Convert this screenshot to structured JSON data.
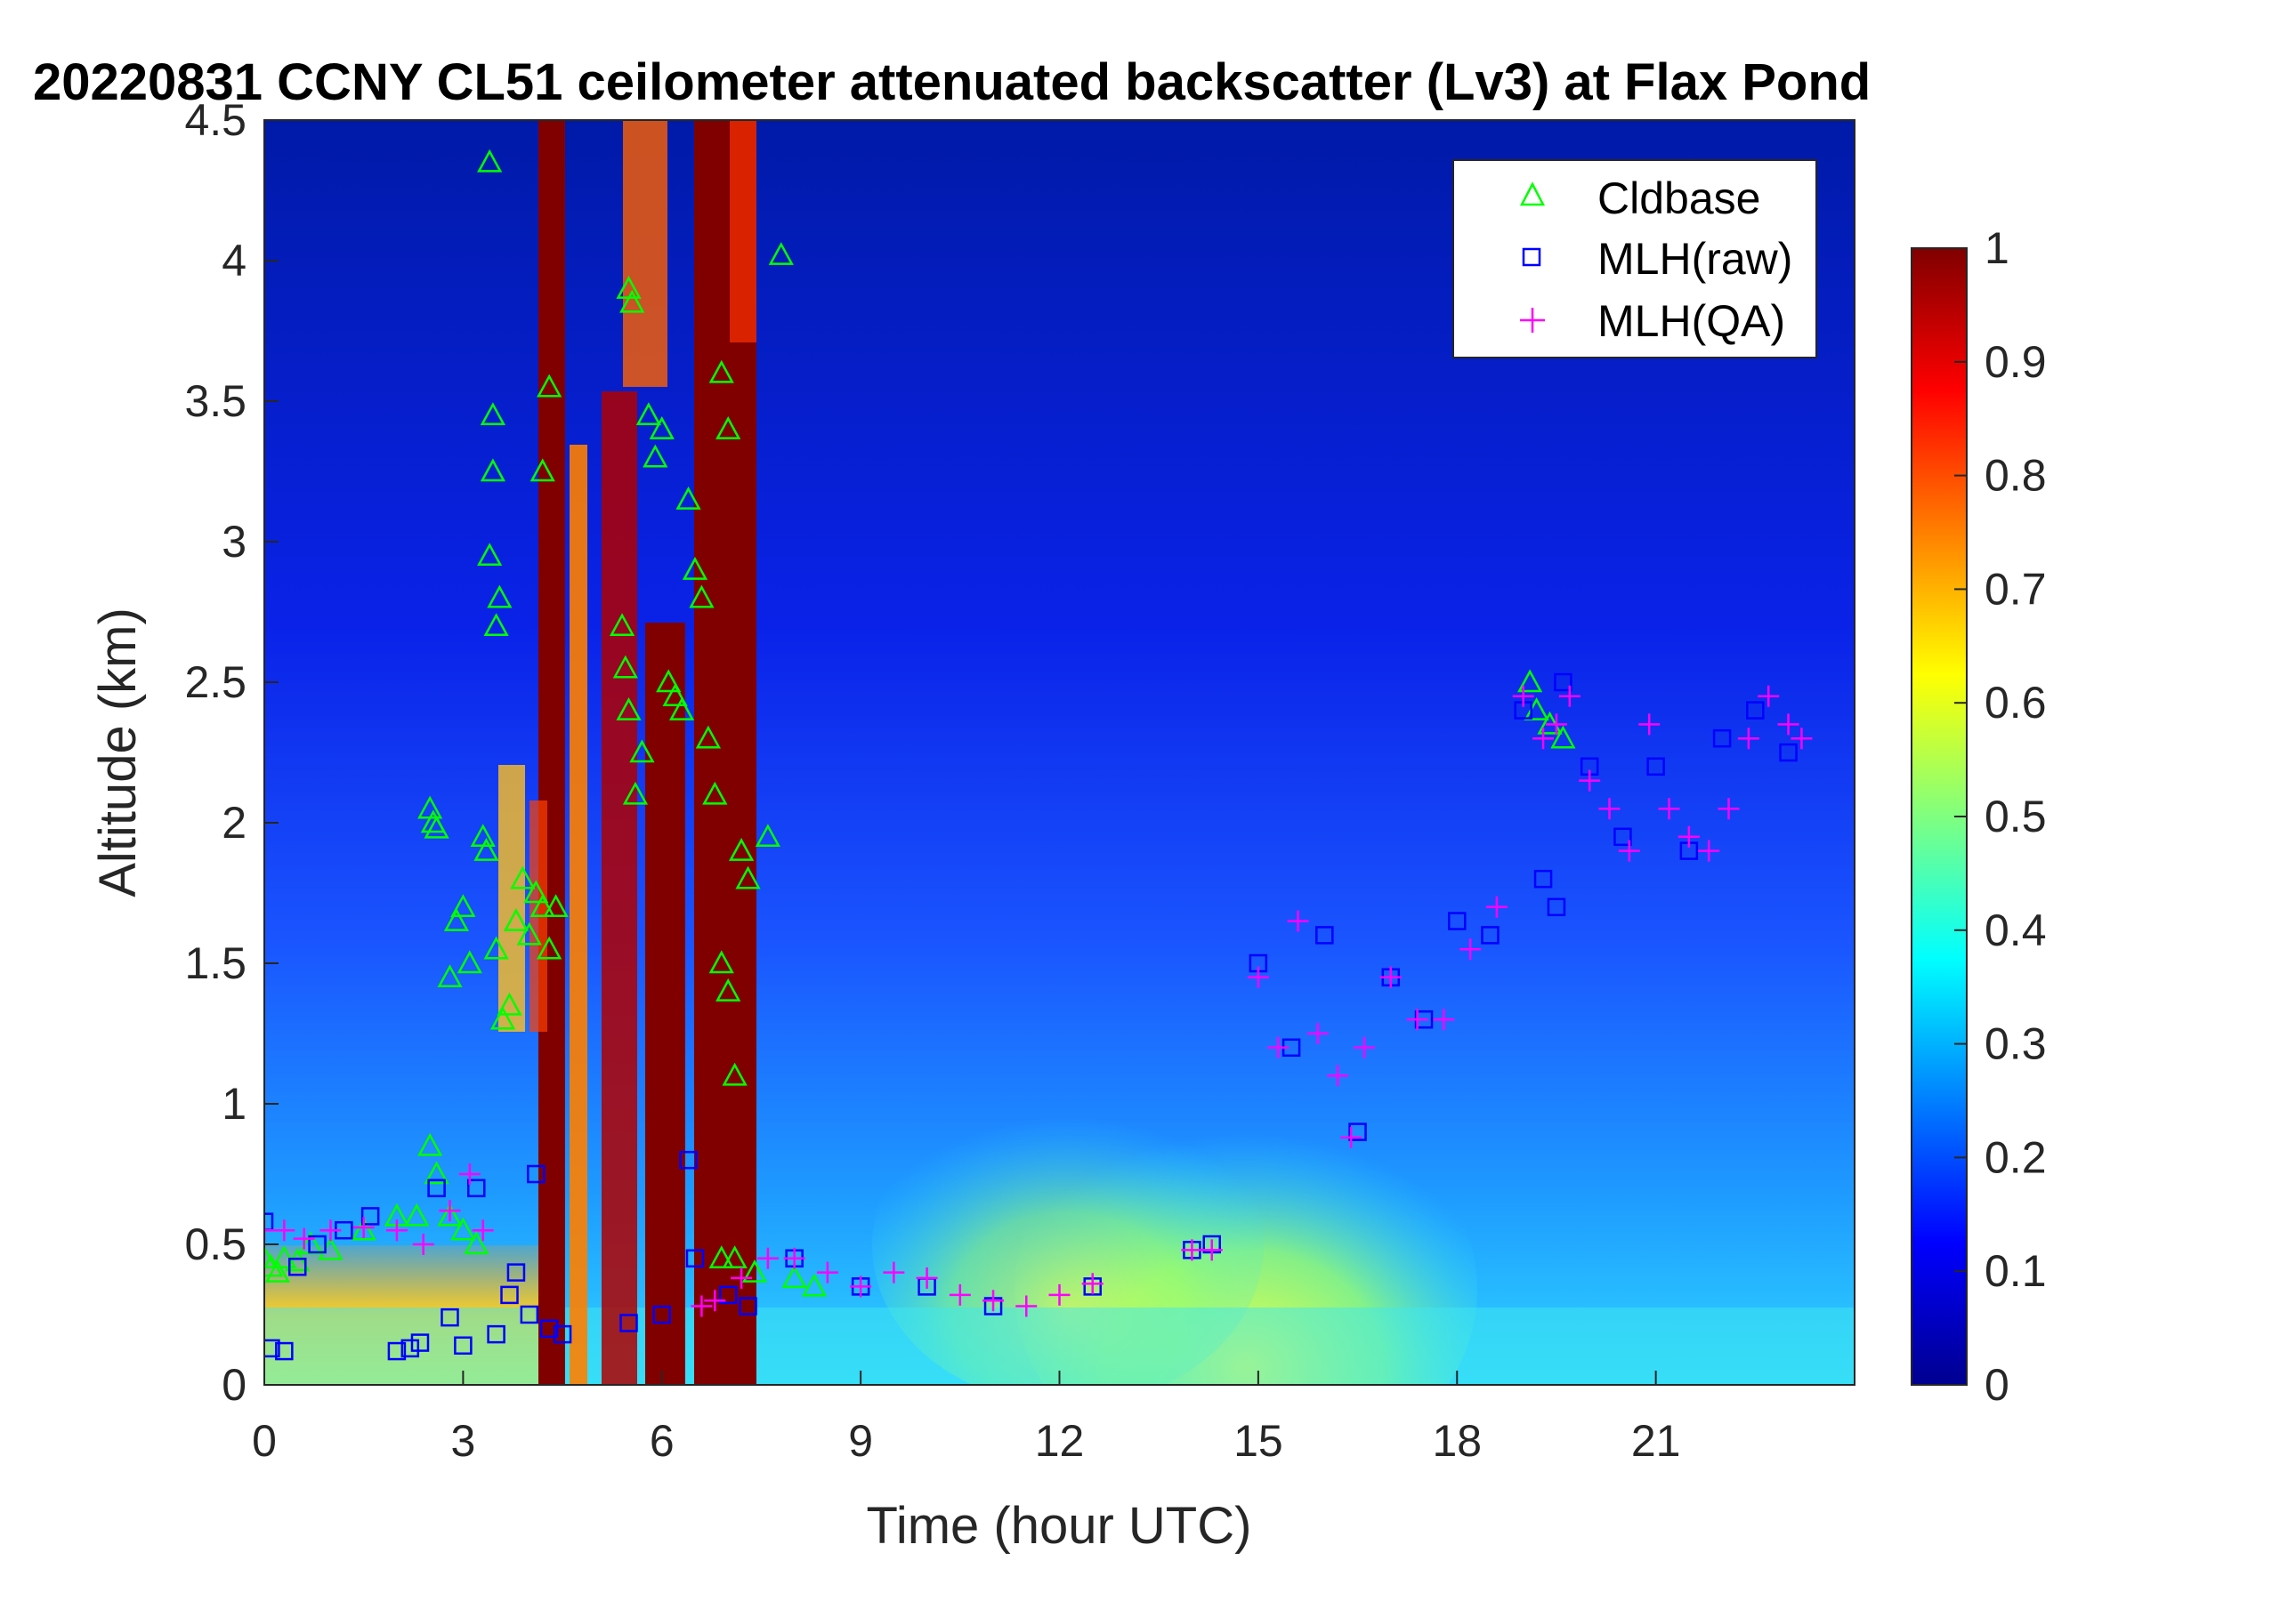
{
  "chart_data": {
    "type": "heatmap",
    "title": "20220831 CCNY CL51 ceilometer attenuated backscatter (Lv3) at Flax Pond",
    "xlabel": "Time (hour UTC)",
    "ylabel": "Altitude (km)",
    "xlim": [
      0,
      24
    ],
    "ylim": [
      0,
      4.5
    ],
    "xticks": [
      "0",
      "3",
      "6",
      "9",
      "12",
      "15",
      "18",
      "21"
    ],
    "yticks": [
      "0",
      "0.5",
      "1",
      "1.5",
      "2",
      "2.5",
      "3",
      "3.5",
      "4",
      "4.5"
    ],
    "colorbar": {
      "colormap": "jet",
      "range": [
        0,
        1
      ],
      "ticks": [
        "0",
        "0.1",
        "0.2",
        "0.3",
        "0.4",
        "0.5",
        "0.6",
        "0.7",
        "0.8",
        "0.9",
        "1"
      ]
    },
    "legend": {
      "placement": "top-right",
      "entries": [
        {
          "label": "Cldbase",
          "marker": "triangle",
          "color": "#00ff00"
        },
        {
          "label": "MLH(raw)",
          "marker": "square",
          "color": "#0000ff"
        },
        {
          "label": "MLH(QA)",
          "marker": "plus",
          "color": "#ff00ff"
        }
      ]
    },
    "series": [
      {
        "name": "Cldbase",
        "points": [
          [
            0.0,
            0.45
          ],
          [
            0.1,
            0.42
          ],
          [
            0.2,
            0.4
          ],
          [
            0.3,
            0.45
          ],
          [
            0.5,
            0.44
          ],
          [
            0.7,
            0.5
          ],
          [
            1.0,
            0.48
          ],
          [
            1.5,
            0.55
          ],
          [
            2.0,
            0.6
          ],
          [
            2.3,
            0.6
          ],
          [
            2.5,
            0.85
          ],
          [
            2.6,
            0.75
          ],
          [
            2.8,
            0.6
          ],
          [
            3.0,
            0.55
          ],
          [
            3.2,
            0.5
          ],
          [
            2.5,
            2.05
          ],
          [
            2.55,
            2.0
          ],
          [
            2.6,
            1.98
          ],
          [
            2.8,
            1.45
          ],
          [
            2.9,
            1.65
          ],
          [
            3.0,
            1.7
          ],
          [
            3.1,
            1.5
          ],
          [
            3.3,
            1.95
          ],
          [
            3.35,
            1.9
          ],
          [
            3.4,
            2.95
          ],
          [
            3.45,
            3.25
          ],
          [
            3.5,
            2.7
          ],
          [
            3.55,
            2.8
          ],
          [
            3.4,
            4.35
          ],
          [
            3.45,
            3.45
          ],
          [
            3.5,
            1.55
          ],
          [
            3.6,
            1.3
          ],
          [
            3.7,
            1.35
          ],
          [
            3.8,
            1.65
          ],
          [
            3.9,
            1.8
          ],
          [
            4.0,
            1.6
          ],
          [
            4.1,
            1.75
          ],
          [
            4.2,
            1.7
          ],
          [
            4.3,
            1.55
          ],
          [
            4.2,
            3.25
          ],
          [
            4.3,
            3.55
          ],
          [
            4.4,
            1.7
          ],
          [
            5.4,
            2.7
          ],
          [
            5.45,
            2.55
          ],
          [
            5.5,
            2.4
          ],
          [
            5.5,
            3.9
          ],
          [
            5.55,
            3.85
          ],
          [
            5.6,
            2.1
          ],
          [
            5.7,
            2.25
          ],
          [
            5.8,
            3.45
          ],
          [
            5.9,
            3.3
          ],
          [
            6.0,
            3.4
          ],
          [
            6.1,
            2.5
          ],
          [
            6.2,
            2.45
          ],
          [
            6.3,
            2.4
          ],
          [
            6.4,
            3.15
          ],
          [
            6.5,
            2.9
          ],
          [
            6.6,
            2.8
          ],
          [
            6.7,
            2.3
          ],
          [
            6.8,
            2.1
          ],
          [
            6.9,
            3.6
          ],
          [
            7.0,
            3.4
          ],
          [
            6.9,
            1.5
          ],
          [
            7.0,
            1.4
          ],
          [
            7.1,
            1.1
          ],
          [
            7.2,
            1.9
          ],
          [
            7.3,
            1.8
          ],
          [
            7.6,
            1.95
          ],
          [
            7.8,
            4.02
          ],
          [
            6.9,
            0.45
          ],
          [
            7.1,
            0.45
          ],
          [
            7.4,
            0.4
          ],
          [
            8.0,
            0.38
          ],
          [
            8.3,
            0.35
          ],
          [
            19.1,
            2.5
          ],
          [
            19.2,
            2.4
          ],
          [
            19.4,
            2.35
          ],
          [
            19.6,
            2.3
          ]
        ]
      },
      {
        "name": "MLH(raw)",
        "points": [
          [
            0.0,
            0.58
          ],
          [
            0.1,
            0.13
          ],
          [
            0.3,
            0.12
          ],
          [
            0.5,
            0.42
          ],
          [
            0.8,
            0.5
          ],
          [
            1.2,
            0.55
          ],
          [
            1.6,
            0.6
          ],
          [
            2.0,
            0.12
          ],
          [
            2.2,
            0.13
          ],
          [
            2.35,
            0.15
          ],
          [
            2.6,
            0.7
          ],
          [
            2.8,
            0.24
          ],
          [
            3.0,
            0.14
          ],
          [
            3.2,
            0.7
          ],
          [
            3.5,
            0.18
          ],
          [
            3.7,
            0.32
          ],
          [
            3.8,
            0.4
          ],
          [
            4.0,
            0.25
          ],
          [
            4.1,
            0.75
          ],
          [
            4.3,
            0.2
          ],
          [
            4.5,
            0.18
          ],
          [
            5.5,
            0.22
          ],
          [
            6.0,
            0.25
          ],
          [
            6.4,
            0.8
          ],
          [
            6.5,
            0.45
          ],
          [
            7.0,
            0.32
          ],
          [
            7.3,
            0.28
          ],
          [
            8.0,
            0.45
          ],
          [
            9.0,
            0.35
          ],
          [
            10.0,
            0.35
          ],
          [
            11.0,
            0.28
          ],
          [
            12.5,
            0.35
          ],
          [
            14.0,
            0.48
          ],
          [
            14.3,
            0.5
          ],
          [
            15.0,
            1.5
          ],
          [
            15.5,
            1.2
          ],
          [
            16.0,
            1.6
          ],
          [
            16.5,
            0.9
          ],
          [
            17.0,
            1.45
          ],
          [
            17.5,
            1.3
          ],
          [
            18.0,
            1.65
          ],
          [
            18.5,
            1.6
          ],
          [
            19.0,
            2.4
          ],
          [
            19.3,
            1.8
          ],
          [
            19.5,
            1.7
          ],
          [
            19.6,
            2.5
          ],
          [
            20.0,
            2.2
          ],
          [
            20.5,
            1.95
          ],
          [
            21.0,
            2.2
          ],
          [
            21.5,
            1.9
          ],
          [
            22.0,
            2.3
          ],
          [
            22.5,
            2.4
          ],
          [
            23.0,
            2.25
          ]
        ]
      },
      {
        "name": "MLH(QA)",
        "points": [
          [
            0.0,
            0.55
          ],
          [
            0.3,
            0.55
          ],
          [
            0.6,
            0.52
          ],
          [
            1.0,
            0.55
          ],
          [
            1.5,
            0.56
          ],
          [
            2.0,
            0.55
          ],
          [
            2.4,
            0.5
          ],
          [
            2.8,
            0.62
          ],
          [
            3.1,
            0.75
          ],
          [
            3.3,
            0.55
          ],
          [
            6.6,
            0.28
          ],
          [
            6.8,
            0.3
          ],
          [
            7.2,
            0.38
          ],
          [
            7.6,
            0.45
          ],
          [
            8.0,
            0.45
          ],
          [
            8.5,
            0.4
          ],
          [
            9.0,
            0.35
          ],
          [
            9.5,
            0.4
          ],
          [
            10.0,
            0.38
          ],
          [
            10.5,
            0.32
          ],
          [
            11.0,
            0.3
          ],
          [
            11.5,
            0.28
          ],
          [
            12.0,
            0.32
          ],
          [
            12.5,
            0.36
          ],
          [
            14.0,
            0.48
          ],
          [
            14.3,
            0.48
          ],
          [
            15.0,
            1.45
          ],
          [
            15.3,
            1.2
          ],
          [
            15.6,
            1.65
          ],
          [
            15.9,
            1.25
          ],
          [
            16.2,
            1.1
          ],
          [
            16.4,
            0.88
          ],
          [
            16.6,
            1.2
          ],
          [
            17.0,
            1.45
          ],
          [
            17.4,
            1.3
          ],
          [
            17.8,
            1.3
          ],
          [
            18.2,
            1.55
          ],
          [
            18.6,
            1.7
          ],
          [
            19.0,
            2.45
          ],
          [
            19.3,
            2.3
          ],
          [
            19.5,
            2.35
          ],
          [
            19.7,
            2.45
          ],
          [
            20.0,
            2.15
          ],
          [
            20.3,
            2.05
          ],
          [
            20.6,
            1.9
          ],
          [
            20.9,
            2.35
          ],
          [
            21.2,
            2.05
          ],
          [
            21.5,
            1.95
          ],
          [
            21.8,
            1.9
          ],
          [
            22.1,
            2.05
          ],
          [
            22.4,
            2.3
          ],
          [
            22.7,
            2.45
          ],
          [
            23.0,
            2.35
          ],
          [
            23.2,
            2.3
          ]
        ]
      }
    ]
  }
}
